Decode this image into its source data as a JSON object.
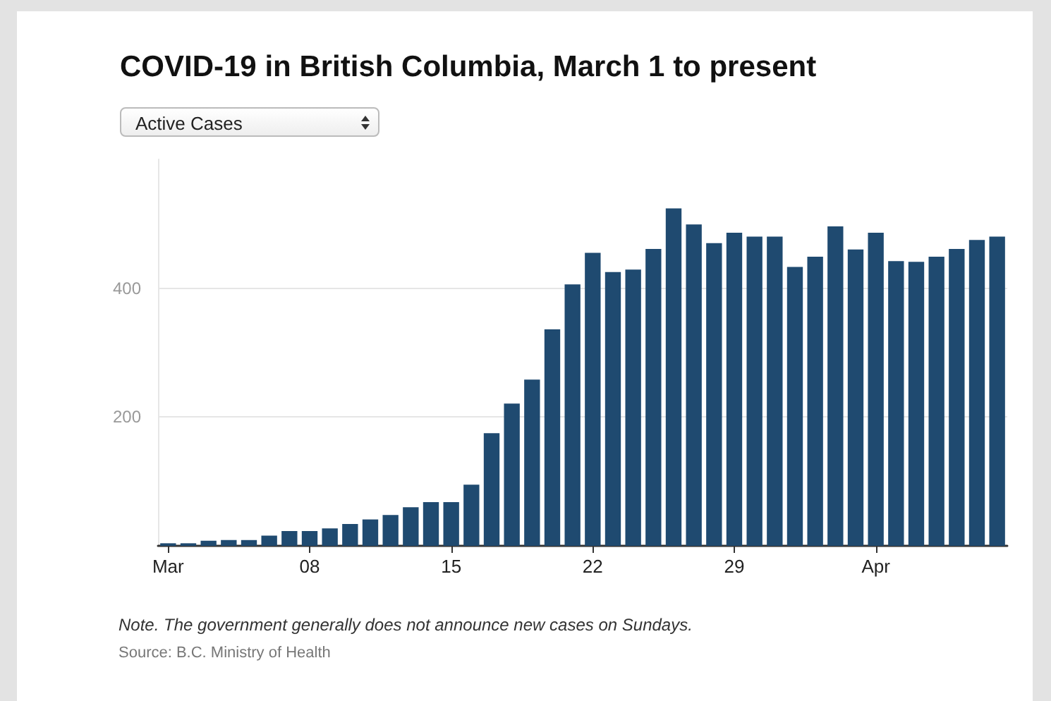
{
  "chart_data": {
    "type": "bar",
    "title": "COVID-19 in British Columbia, March 1 to present",
    "subtitle": "Active Cases",
    "categories": [
      "Mar",
      null,
      null,
      null,
      null,
      null,
      null,
      "08",
      null,
      null,
      null,
      null,
      null,
      null,
      "15",
      null,
      null,
      null,
      null,
      null,
      null,
      "22",
      null,
      null,
      null,
      null,
      null,
      null,
      "29",
      null,
      null,
      null,
      null,
      null,
      null,
      "Apr",
      null,
      null,
      null,
      null,
      null,
      null
    ],
    "values": [
      4,
      4,
      8,
      9,
      9,
      16,
      23,
      23,
      27,
      34,
      41,
      48,
      60,
      68,
      68,
      95,
      175,
      221,
      258,
      336,
      406,
      455,
      425,
      429,
      461,
      524,
      499,
      470,
      486,
      480,
      480,
      433,
      449,
      496,
      460,
      486,
      442,
      441,
      449,
      461,
      475,
      480
    ],
    "color": "#1f4a70",
    "ylim": [
      0,
      600
    ],
    "yticks": [
      200,
      400
    ],
    "grid": "y",
    "annotations": [
      "Note. The government generally does not announce new cases on Sundays.",
      "Source: B.C. Ministry of Health"
    ]
  }
}
